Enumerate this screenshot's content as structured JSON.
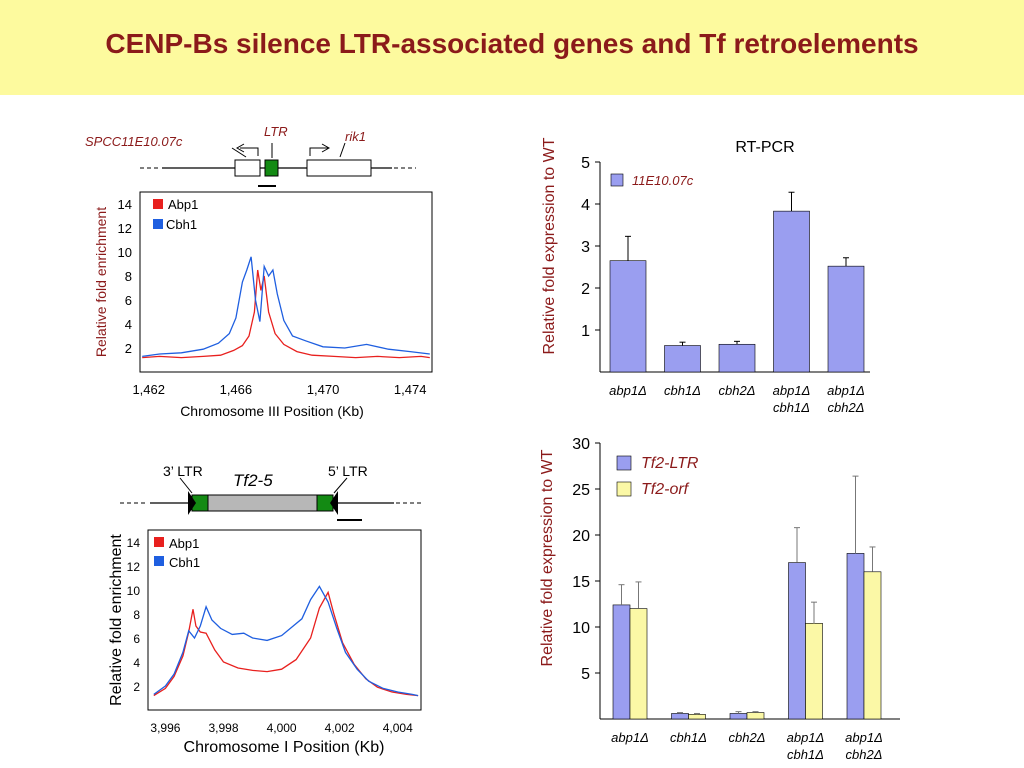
{
  "slide": {
    "title": "CENP-Bs silence LTR-associated genes and Tf retroelements"
  },
  "colors": {
    "abp1": "#e8201e",
    "cbh1": "#1f5fe0",
    "bar_blue": "#9a9ef0",
    "bar_yellow": "#fbf8a6",
    "dark_red": "#8b1a1a",
    "ltr_green": "#138a13"
  },
  "top_left": {
    "locus": {
      "gene_left": "SPCC11E10.07c",
      "ltr": "LTR",
      "gene_right": "rik1"
    },
    "chart_data": {
      "type": "line",
      "xlabel": "Chromosome III Position (Kb)",
      "ylabel": "Relative fold enrichment",
      "xlim": [
        1461.6,
        1475.0
      ],
      "ylim": [
        0,
        15
      ],
      "xticks": [
        "1,462",
        "1,466",
        "1,470",
        "1,474"
      ],
      "xtick_values": [
        1462,
        1466,
        1470,
        1474
      ],
      "yticks": [
        "2",
        "4",
        "6",
        "8",
        "10",
        "12",
        "14"
      ],
      "ytick_values": [
        2,
        4,
        6,
        8,
        10,
        12,
        14
      ],
      "series": [
        {
          "name": "Abp1",
          "color": "#e8201e",
          "x": [
            1461.7,
            1462.5,
            1463.5,
            1464.5,
            1465.3,
            1465.9,
            1466.3,
            1466.6,
            1466.85,
            1467.0,
            1467.15,
            1467.3,
            1467.5,
            1467.8,
            1468.2,
            1468.8,
            1469.5,
            1470.5,
            1471.5,
            1472.5,
            1473.5,
            1474.5,
            1474.9
          ],
          "y": [
            1.2,
            1.3,
            1.2,
            1.3,
            1.4,
            1.8,
            2.2,
            3.0,
            5.0,
            8.5,
            6.8,
            8.0,
            5.0,
            3.2,
            2.3,
            1.7,
            1.4,
            1.3,
            1.2,
            1.3,
            1.2,
            1.3,
            1.2
          ]
        },
        {
          "name": "Cbh1",
          "color": "#1f5fe0",
          "x": [
            1461.7,
            1462.5,
            1463.5,
            1464.5,
            1465.2,
            1465.7,
            1466.0,
            1466.3,
            1466.5,
            1466.7,
            1466.9,
            1467.1,
            1467.3,
            1467.5,
            1467.7,
            1467.9,
            1468.2,
            1468.6,
            1469.2,
            1470.0,
            1471.0,
            1472.0,
            1473.0,
            1474.0,
            1474.9
          ],
          "y": [
            1.3,
            1.5,
            1.6,
            1.9,
            2.4,
            3.2,
            4.5,
            7.5,
            8.5,
            9.6,
            6.0,
            4.2,
            8.8,
            8.0,
            8.5,
            6.5,
            4.3,
            3.0,
            2.6,
            2.1,
            2.0,
            2.3,
            1.9,
            1.7,
            1.5
          ]
        }
      ],
      "legend": [
        "Abp1",
        "Cbh1"
      ]
    }
  },
  "top_right": {
    "chart_data": {
      "type": "bar",
      "title": "RT-PCR",
      "ylabel": "Relative fold expression to WT",
      "ylim": [
        0,
        5
      ],
      "yticks": [
        "1",
        "2",
        "3",
        "4",
        "5"
      ],
      "ytick_values": [
        1,
        2,
        3,
        4,
        5
      ],
      "categories": [
        [
          "abp1Δ"
        ],
        [
          "cbh1Δ"
        ],
        [
          "cbh2Δ"
        ],
        [
          "abp1Δ",
          "cbh1Δ"
        ],
        [
          "abp1Δ",
          "cbh2Δ"
        ]
      ],
      "series": [
        {
          "name": "11E10.07c",
          "color": "#9a9ef0",
          "values": [
            2.65,
            0.63,
            0.66,
            3.83,
            2.52
          ],
          "errors": [
            0.58,
            0.08,
            0.07,
            0.45,
            0.2
          ]
        }
      ]
    }
  },
  "bottom_left": {
    "locus": {
      "ltr3": "3’ LTR",
      "element": "Tf2-5",
      "ltr5": "5’ LTR"
    },
    "chart_data": {
      "type": "line",
      "xlabel": "Chromosome I Position (Kb)",
      "ylabel": "Relative fold enrichment",
      "xlim": [
        3995.4,
        4004.8
      ],
      "ylim": [
        0,
        15
      ],
      "xticks": [
        "3,996",
        "3,998",
        "4,000",
        "4,002",
        "4,004"
      ],
      "xtick_values": [
        3996,
        3998,
        4000,
        4002,
        4004
      ],
      "yticks": [
        "2",
        "4",
        "6",
        "8",
        "10",
        "12",
        "14"
      ],
      "ytick_values": [
        2,
        4,
        6,
        8,
        10,
        12,
        14
      ],
      "series": [
        {
          "name": "Abp1",
          "color": "#e8201e",
          "x": [
            3995.6,
            3996.0,
            3996.3,
            3996.6,
            3996.8,
            3996.95,
            3997.05,
            3997.2,
            3997.4,
            3997.7,
            3998.0,
            3998.5,
            3999.0,
            3999.5,
            4000.0,
            4000.5,
            4001.0,
            4001.3,
            4001.6,
            4001.8,
            4002.1,
            4002.5,
            4002.9,
            4003.3,
            4003.8,
            4004.3,
            4004.7
          ],
          "y": [
            1.2,
            1.8,
            2.8,
            4.5,
            6.5,
            8.4,
            7.0,
            6.5,
            6.4,
            5.0,
            4.0,
            3.5,
            3.3,
            3.2,
            3.4,
            4.2,
            6.0,
            8.5,
            9.8,
            8.0,
            5.6,
            3.8,
            2.6,
            1.9,
            1.5,
            1.3,
            1.2
          ]
        },
        {
          "name": "Cbh1",
          "color": "#1f5fe0",
          "x": [
            3995.6,
            3996.0,
            3996.3,
            3996.6,
            3996.8,
            3997.0,
            3997.2,
            3997.4,
            3997.6,
            3997.9,
            3998.3,
            3998.7,
            3999.0,
            3999.5,
            4000.0,
            4000.4,
            4000.7,
            4001.0,
            4001.3,
            4001.6,
            4001.9,
            4002.2,
            4002.6,
            4003.0,
            4003.5,
            4004.0,
            4004.5,
            4004.7
          ],
          "y": [
            1.3,
            2.0,
            3.0,
            4.8,
            6.6,
            6.0,
            7.0,
            8.6,
            7.5,
            6.8,
            6.3,
            6.4,
            6.0,
            5.8,
            6.2,
            7.0,
            7.6,
            9.2,
            10.3,
            9.0,
            6.8,
            4.8,
            3.4,
            2.4,
            1.8,
            1.5,
            1.3,
            1.2
          ]
        }
      ],
      "legend": [
        "Abp1",
        "Cbh1"
      ]
    }
  },
  "bottom_right": {
    "chart_data": {
      "type": "bar",
      "ylabel": "Relative fold expression to WT",
      "ylim": [
        0,
        30
      ],
      "yticks": [
        "5",
        "10",
        "15",
        "20",
        "25",
        "30"
      ],
      "ytick_values": [
        5,
        10,
        15,
        20,
        25,
        30
      ],
      "categories": [
        [
          "abp1Δ"
        ],
        [
          "cbh1Δ"
        ],
        [
          "cbh2Δ"
        ],
        [
          "abp1Δ",
          "cbh1Δ"
        ],
        [
          "abp1Δ",
          "cbh2Δ"
        ]
      ],
      "series": [
        {
          "name": "Tf2-LTR",
          "color": "#9a9ef0",
          "values": [
            12.4,
            0.6,
            0.6,
            17.0,
            18.0
          ],
          "errors": [
            2.2,
            0.1,
            0.2,
            3.8,
            8.4
          ]
        },
        {
          "name": "Tf2-orf",
          "color": "#fbf8a6",
          "values": [
            12.0,
            0.5,
            0.7,
            10.4,
            16.0
          ],
          "errors": [
            2.9,
            0.1,
            0.1,
            2.3,
            2.7
          ]
        }
      ]
    }
  }
}
